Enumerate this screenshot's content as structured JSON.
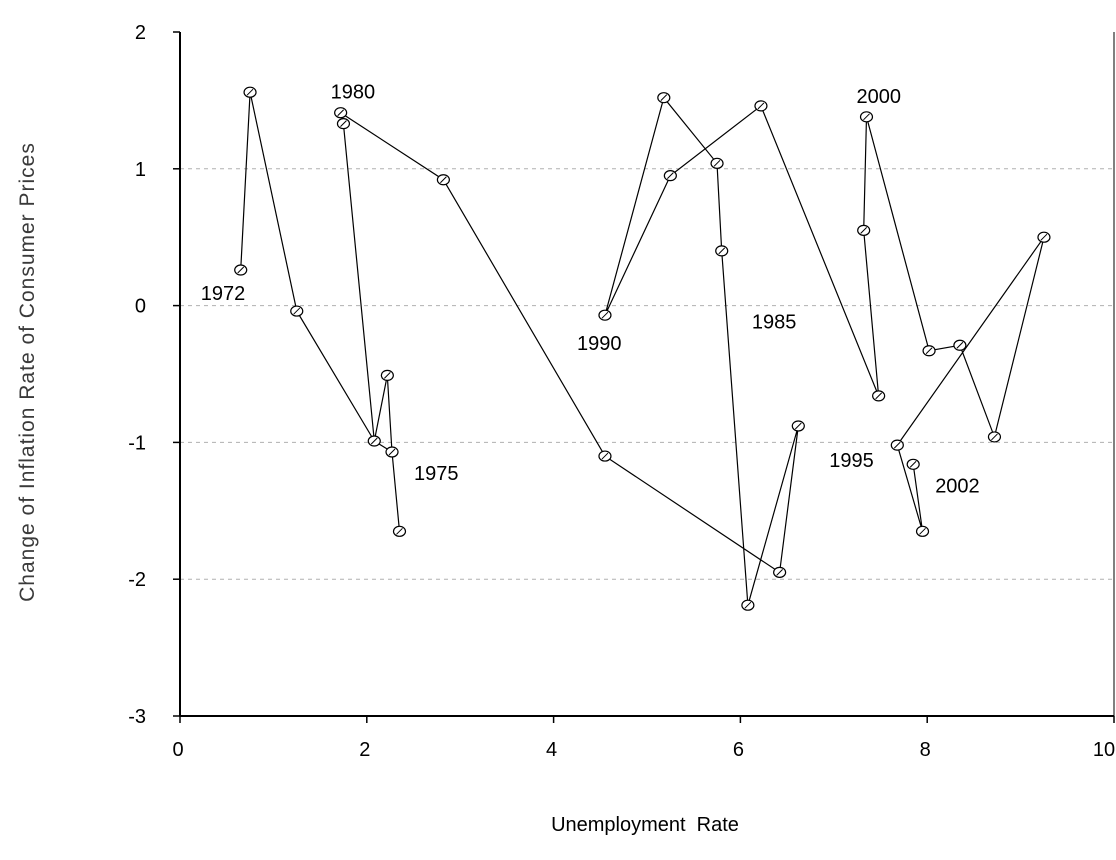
{
  "chart_data": {
    "type": "line",
    "title": "",
    "xlabel": "Unemployment  Rate",
    "ylabel": "Change of Inflation Rate of Consumer Prices",
    "xlim": [
      0,
      10
    ],
    "ylim": [
      -3,
      2
    ],
    "xticks": [
      0,
      2,
      4,
      6,
      8,
      10
    ],
    "yticks": [
      -3,
      -2,
      -1,
      0,
      1,
      2
    ],
    "x_tick_labels": [
      "0",
      "2",
      "4",
      "6",
      "8",
      "10"
    ],
    "y_tick_labels": [
      "-3",
      "-2",
      "-1",
      "0",
      "1",
      "2"
    ],
    "grid": "horizontal dashed",
    "legend": "none",
    "marker": "open circle",
    "line_color": "#000000",
    "grid_color": "#b0b0b0",
    "series": [
      {
        "points": [
          {
            "x": 0.65,
            "y": 0.26
          },
          {
            "x": 0.75,
            "y": 1.56
          },
          {
            "x": 1.25,
            "y": -0.04
          },
          {
            "x": 2.08,
            "y": -0.99
          },
          {
            "x": 2.22,
            "y": -0.51
          },
          {
            "x": 2.27,
            "y": -1.07
          },
          {
            "x": 2.35,
            "y": -1.65
          },
          {
            "x": 2.27,
            "y": -1.07
          },
          {
            "x": 2.08,
            "y": -0.99
          },
          {
            "x": 1.75,
            "y": 1.33
          },
          {
            "x": 1.72,
            "y": 1.41
          },
          {
            "x": 2.82,
            "y": 0.92
          },
          {
            "x": 4.55,
            "y": -1.1
          },
          {
            "x": 6.42,
            "y": -1.95
          },
          {
            "x": 6.62,
            "y": -0.88
          },
          {
            "x": 6.08,
            "y": -2.19
          },
          {
            "x": 5.8,
            "y": 0.4
          },
          {
            "x": 5.75,
            "y": 1.04
          },
          {
            "x": 5.18,
            "y": 1.52
          },
          {
            "x": 4.55,
            "y": -0.07
          },
          {
            "x": 5.25,
            "y": 0.95
          },
          {
            "x": 6.22,
            "y": 1.46
          },
          {
            "x": 7.48,
            "y": -0.66
          },
          {
            "x": 7.32,
            "y": 0.55
          },
          {
            "x": 7.35,
            "y": 1.38
          },
          {
            "x": 8.02,
            "y": -0.33
          },
          {
            "x": 8.35,
            "y": -0.29
          },
          {
            "x": 8.72,
            "y": -0.96
          },
          {
            "x": 9.25,
            "y": 0.5
          },
          {
            "x": 7.68,
            "y": -1.02
          },
          {
            "x": 7.95,
            "y": -1.65
          },
          {
            "x": 7.85,
            "y": -1.16
          }
        ]
      }
    ],
    "annotations": [
      {
        "text": "1972",
        "x": 0.65,
        "y": 0.26,
        "anchor": "below-left"
      },
      {
        "text": "1975",
        "x": 2.27,
        "y": -1.07,
        "anchor": "right"
      },
      {
        "text": "1980",
        "x": 1.72,
        "y": 1.41,
        "anchor": "above"
      },
      {
        "text": "1985",
        "x": 6.68,
        "y": -0.33,
        "anchor": "above-left"
      },
      {
        "text": "1990",
        "x": 4.55,
        "y": -0.07,
        "anchor": "below"
      },
      {
        "text": "1995",
        "x": 7.68,
        "y": -1.02,
        "anchor": "left"
      },
      {
        "text": "2000",
        "x": 7.35,
        "y": 1.38,
        "anchor": "above"
      },
      {
        "text": "2002",
        "x": 7.85,
        "y": -1.16,
        "anchor": "right"
      }
    ]
  }
}
